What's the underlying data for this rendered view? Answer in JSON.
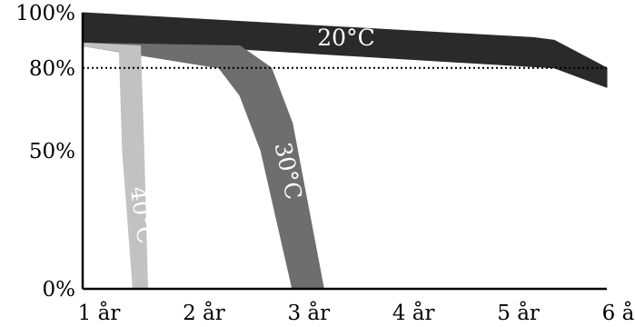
{
  "chart_data": {
    "type": "area",
    "title": "",
    "xlabel": "",
    "ylabel": "",
    "x_ticks": [
      1,
      2,
      3,
      4,
      5,
      6
    ],
    "x_tick_labels": [
      "1 år",
      "2 år",
      "3 år",
      "4 år",
      "5 år",
      "6 år"
    ],
    "y_ticks": [
      0,
      50,
      80,
      100
    ],
    "y_tick_labels": [
      "0%",
      "50%",
      "80%",
      "100%"
    ],
    "xlim": [
      1,
      6
    ],
    "ylim": [
      0,
      100
    ],
    "reference_line": {
      "y": 80,
      "style": "dotted",
      "color": "#000000"
    },
    "grid": false,
    "legend": "none",
    "series": [
      {
        "name": "20°C",
        "color": "#2a2a2a",
        "label_color": "#ffffff",
        "upper": {
          "x": [
            1,
            5.3,
            5.5,
            6
          ],
          "y": [
            100,
            91,
            90,
            80
          ]
        },
        "lower": {
          "x": [
            1,
            2,
            5.5,
            6
          ],
          "y": [
            89,
            88,
            80,
            73
          ]
        }
      },
      {
        "name": "30°C",
        "color": "#6e6e6e",
        "label_color": "#ffffff",
        "upper": {
          "x": [
            1,
            2.5,
            2.8,
            3.0,
            3.3
          ],
          "y": [
            89,
            88,
            80,
            60,
            0
          ]
        },
        "lower": {
          "x": [
            1,
            2.3,
            2.5,
            2.7,
            3.0
          ],
          "y": [
            88,
            80,
            70,
            50,
            0
          ]
        }
      },
      {
        "name": "40°C",
        "color": "#c2c2c2",
        "label_color": "#ffffff",
        "upper": {
          "x": [
            1,
            1.55,
            1.58,
            1.62
          ],
          "y": [
            89,
            88,
            55,
            0
          ]
        },
        "lower": {
          "x": [
            1,
            1.35,
            1.38,
            1.48
          ],
          "y": [
            88,
            86,
            50,
            0
          ]
        }
      }
    ]
  }
}
